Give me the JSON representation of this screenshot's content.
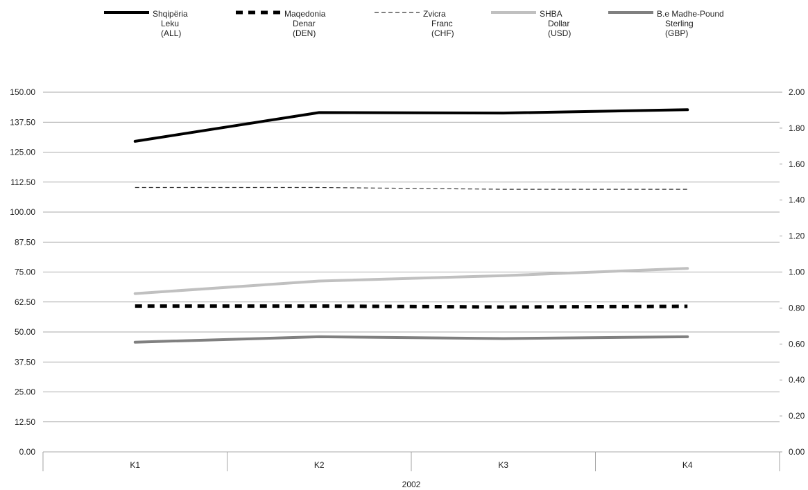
{
  "chart_data": {
    "type": "line",
    "categories": [
      "K1",
      "K2",
      "K3",
      "K4"
    ],
    "group_label": "2002",
    "y_left": {
      "ylim": [
        0,
        150
      ],
      "ticks": [
        "0.00",
        "12.50",
        "25.00",
        "37.50",
        "50.00",
        "62.50",
        "75.00",
        "87.50",
        "100.00",
        "112.50",
        "125.00",
        "137.50",
        "150.00"
      ]
    },
    "y_right": {
      "ylim": [
        0,
        2
      ],
      "ticks": [
        "0.00",
        "0.20",
        "0.40",
        "0.60",
        "0.80",
        "1.00",
        "1.20",
        "1.40",
        "1.60",
        "1.80",
        "2.00"
      ]
    },
    "grid": true,
    "legend_position": "top",
    "series": [
      {
        "name": [
          "Shqipëria",
          "Leku",
          "(ALL)"
        ],
        "axis": "left",
        "values": [
          129.5,
          141.5,
          141.3,
          142.7
        ],
        "color": "#000000",
        "style": "solid-heavy"
      },
      {
        "name": [
          "Maqedonia",
          "Denar",
          "(DEN)"
        ],
        "axis": "left",
        "values": [
          60.8,
          60.8,
          60.4,
          60.7
        ],
        "color": "#000000",
        "style": "dash-heavy"
      },
      {
        "name": [
          "Zvicra",
          "Franc",
          "(CHF)"
        ],
        "axis": "right",
        "values": [
          1.47,
          1.47,
          1.46,
          1.46
        ],
        "color": "#333333",
        "style": "dash-thin"
      },
      {
        "name": [
          "SHBA",
          "Dollar",
          "(USD)"
        ],
        "axis": "right",
        "values": [
          0.88,
          0.95,
          0.98,
          1.02
        ],
        "color": "#c0c0c0",
        "style": "solid-light"
      },
      {
        "name": [
          "B.e Madhe-Pound",
          "Sterling",
          "(GBP)"
        ],
        "axis": "right",
        "values": [
          0.61,
          0.64,
          0.63,
          0.64
        ],
        "color": "#808080",
        "style": "solid-mid"
      }
    ]
  }
}
